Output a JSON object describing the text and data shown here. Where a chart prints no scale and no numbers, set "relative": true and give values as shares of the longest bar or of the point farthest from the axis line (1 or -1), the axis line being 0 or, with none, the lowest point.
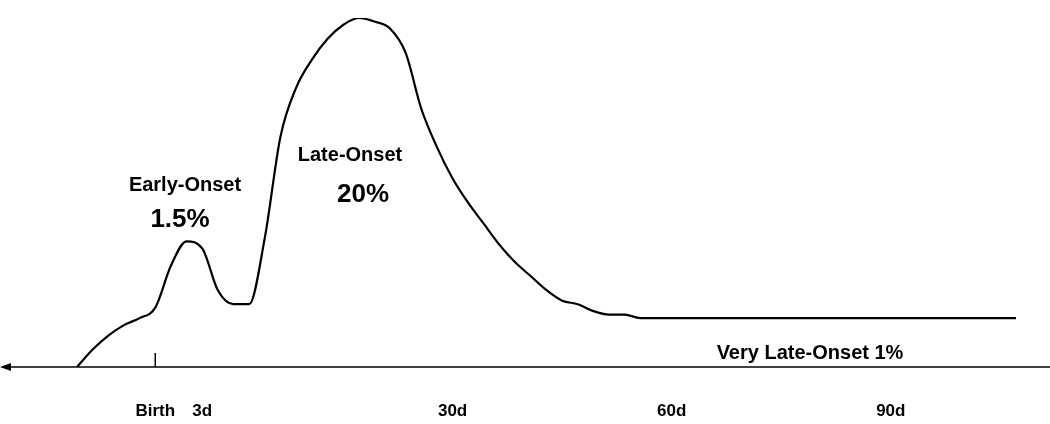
{
  "chart_data": {
    "type": "line",
    "relative": true,
    "color": "#000000",
    "categories": [
      null,
      null,
      null,
      null,
      null,
      "Birth",
      null,
      null,
      "3d",
      null,
      null,
      null,
      null,
      null,
      null,
      null,
      null,
      null,
      null,
      null,
      null,
      null,
      null,
      null,
      "30d",
      null,
      null,
      null,
      null,
      null,
      null,
      null,
      null,
      null,
      null,
      null,
      null,
      null,
      "60d",
      null,
      null,
      null,
      null,
      null,
      null,
      null,
      null,
      null,
      null,
      null,
      null,
      null,
      "90d",
      null,
      null,
      null,
      null,
      null,
      null,
      null,
      null
    ],
    "values": [
      0,
      0.05,
      0.09,
      0.12,
      0.14,
      0.17,
      0.29,
      0.36,
      0.34,
      0.22,
      0.18,
      0.18,
      0.37,
      0.66,
      0.8,
      0.88,
      0.94,
      0.98,
      1,
      0.99,
      0.97,
      0.9,
      0.74,
      0.63,
      0.54,
      0.47,
      0.41,
      0.35,
      0.3,
      0.26,
      0.22,
      0.19,
      0.18,
      0.16,
      0.15,
      0.15,
      0.14,
      0.14,
      0.14,
      0.14,
      0.14,
      0.14,
      0.14,
      0.14,
      0.14,
      0.14,
      0.14,
      0.14,
      0.14,
      0.14,
      0.14,
      0.14,
      0.14,
      0.14,
      0.14,
      0.14,
      0.14,
      0.14,
      0.14,
      0.14,
      0.14
    ],
    "annotations": [
      "Early-Onset",
      "1.5%",
      "Late-Onset",
      "20%",
      "Very Late-Onset 1%"
    ]
  }
}
